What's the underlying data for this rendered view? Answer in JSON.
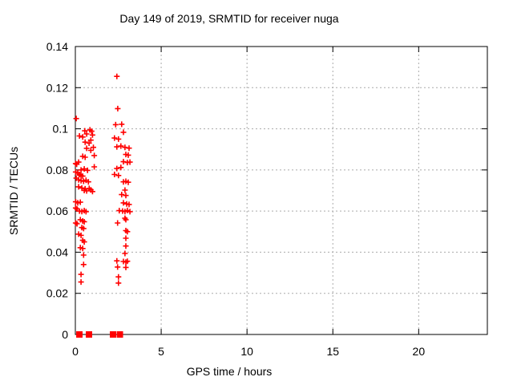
{
  "chart_data": {
    "type": "scatter",
    "title": "Day 149 of 2019, SRMTID for receiver nuga",
    "xlabel": "GPS time / hours",
    "ylabel": "SRMTID / TECUs",
    "xlim": [
      0,
      24
    ],
    "ylim": [
      0,
      0.14
    ],
    "xticks": [
      0,
      5,
      10,
      15,
      20
    ],
    "xtick_labels": [
      "0",
      "5",
      "10",
      "15",
      "20"
    ],
    "yticks": [
      0,
      0.02,
      0.04,
      0.06,
      0.08,
      0.1,
      0.12,
      0.14
    ],
    "ytick_labels": [
      "0",
      "0.02",
      "0.04",
      "0.06",
      "0.08",
      "0.1",
      "0.12",
      "0.14"
    ],
    "grid": true,
    "legend_position": "none",
    "marker": "plus",
    "marker_color": "#ff0000",
    "points": [
      [
        0.05,
        0.105
      ],
      [
        0.24,
        0.0965
      ],
      [
        0.43,
        0.096
      ],
      [
        0.55,
        0.099
      ],
      [
        0.66,
        0.0975
      ],
      [
        0.85,
        0.0995
      ],
      [
        0.95,
        0.0988
      ],
      [
        1.0,
        0.097
      ],
      [
        0.57,
        0.0935
      ],
      [
        0.8,
        0.093
      ],
      [
        0.9,
        0.0945
      ],
      [
        0.66,
        0.0905
      ],
      [
        0.9,
        0.0895
      ],
      [
        1.05,
        0.091
      ],
      [
        0.43,
        0.0866
      ],
      [
        0.57,
        0.0862
      ],
      [
        1.1,
        0.087
      ],
      [
        0.02,
        0.0831
      ],
      [
        0.08,
        0.0828
      ],
      [
        0.19,
        0.0838
      ],
      [
        0.33,
        0.08
      ],
      [
        0.52,
        0.0805
      ],
      [
        0.71,
        0.0798
      ],
      [
        1.1,
        0.0815
      ],
      [
        0.02,
        0.079
      ],
      [
        0.14,
        0.0785
      ],
      [
        0.24,
        0.0778
      ],
      [
        0.33,
        0.0772
      ],
      [
        0.43,
        0.077
      ],
      [
        0.05,
        0.076
      ],
      [
        0.19,
        0.0752
      ],
      [
        0.33,
        0.0748
      ],
      [
        0.48,
        0.0745
      ],
      [
        0.62,
        0.075
      ],
      [
        0.76,
        0.0742
      ],
      [
        0.19,
        0.0718
      ],
      [
        0.38,
        0.0712
      ],
      [
        0.57,
        0.0708
      ],
      [
        0.81,
        0.071
      ],
      [
        0.52,
        0.07
      ],
      [
        0.66,
        0.0698
      ],
      [
        0.9,
        0.0703
      ],
      [
        1.0,
        0.0695
      ],
      [
        0.02,
        0.0645
      ],
      [
        0.14,
        0.064
      ],
      [
        0.29,
        0.0643
      ],
      [
        0.02,
        0.0615
      ],
      [
        0.1,
        0.061
      ],
      [
        0.24,
        0.06
      ],
      [
        0.38,
        0.0598
      ],
      [
        0.52,
        0.0602
      ],
      [
        0.62,
        0.0597
      ],
      [
        0.29,
        0.0558
      ],
      [
        0.43,
        0.0552
      ],
      [
        0.52,
        0.0548
      ],
      [
        0.02,
        0.0542
      ],
      [
        0.1,
        0.0538
      ],
      [
        0.38,
        0.052
      ],
      [
        0.48,
        0.0515
      ],
      [
        0.19,
        0.0488
      ],
      [
        0.33,
        0.0482
      ],
      [
        0.43,
        0.0458
      ],
      [
        0.52,
        0.045
      ],
      [
        0.29,
        0.0422
      ],
      [
        0.43,
        0.0418
      ],
      [
        0.48,
        0.0386
      ],
      [
        0.48,
        0.034
      ],
      [
        0.33,
        0.0292
      ],
      [
        0.33,
        0.0255
      ],
      [
        2.42,
        0.1255
      ],
      [
        2.47,
        0.1098
      ],
      [
        2.35,
        0.102
      ],
      [
        2.7,
        0.1022
      ],
      [
        2.8,
        0.0983
      ],
      [
        2.28,
        0.0955
      ],
      [
        2.51,
        0.095
      ],
      [
        2.42,
        0.0912
      ],
      [
        2.65,
        0.0916
      ],
      [
        2.89,
        0.091
      ],
      [
        3.13,
        0.0906
      ],
      [
        2.94,
        0.0875
      ],
      [
        3.08,
        0.0872
      ],
      [
        2.8,
        0.084
      ],
      [
        3.03,
        0.0836
      ],
      [
        3.18,
        0.0838
      ],
      [
        2.42,
        0.0807
      ],
      [
        2.65,
        0.0812
      ],
      [
        2.28,
        0.0778
      ],
      [
        2.51,
        0.0773
      ],
      [
        2.8,
        0.0742
      ],
      [
        2.94,
        0.0745
      ],
      [
        3.08,
        0.074
      ],
      [
        2.89,
        0.0702
      ],
      [
        2.7,
        0.068
      ],
      [
        2.94,
        0.0676
      ],
      [
        2.8,
        0.064
      ],
      [
        2.99,
        0.0635
      ],
      [
        3.13,
        0.0632
      ],
      [
        2.56,
        0.0602
      ],
      [
        2.75,
        0.06
      ],
      [
        2.89,
        0.0598
      ],
      [
        3.03,
        0.0603
      ],
      [
        3.18,
        0.0597
      ],
      [
        2.89,
        0.0565
      ],
      [
        2.94,
        0.0558
      ],
      [
        2.46,
        0.0542
      ],
      [
        2.94,
        0.0505
      ],
      [
        3.03,
        0.05
      ],
      [
        2.94,
        0.0468
      ],
      [
        2.94,
        0.043
      ],
      [
        2.89,
        0.0394
      ],
      [
        2.42,
        0.0358
      ],
      [
        2.8,
        0.0355
      ],
      [
        2.94,
        0.0352
      ],
      [
        3.03,
        0.0356
      ],
      [
        2.46,
        0.0328
      ],
      [
        2.94,
        0.0326
      ],
      [
        2.51,
        0.028
      ],
      [
        2.51,
        0.025
      ]
    ],
    "zero_runs": [
      [
        0.05,
        0.42
      ],
      [
        0.61,
        0.98
      ],
      [
        2.01,
        2.38
      ],
      [
        2.41,
        2.78
      ]
    ]
  }
}
